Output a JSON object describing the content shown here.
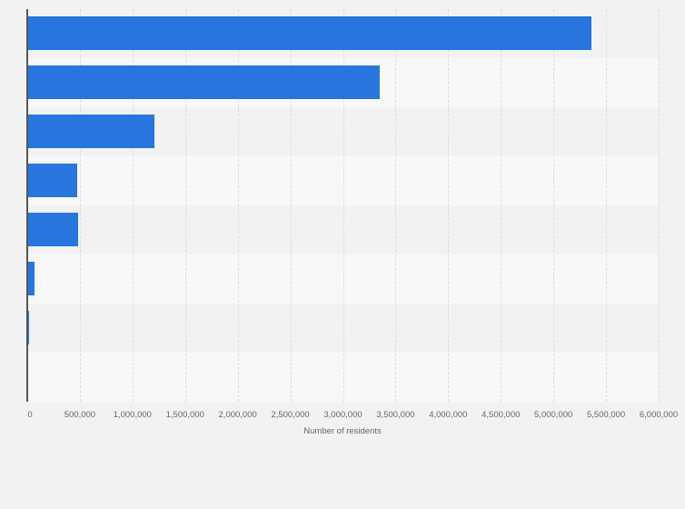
{
  "chart_data": {
    "type": "bar",
    "orientation": "horizontal",
    "title": "",
    "xlabel": "Number of residents",
    "ylabel": "",
    "categories": [
      "",
      "",
      "",
      "",
      "",
      "",
      "",
      ""
    ],
    "values": [
      5360000,
      3350000,
      1210000,
      478000,
      484000,
      72000,
      11000,
      0
    ],
    "xlim": [
      0,
      6000000
    ],
    "xticks": [
      0,
      500000,
      1000000,
      1500000,
      2000000,
      2500000,
      3000000,
      3500000,
      4000000,
      4500000,
      5000000,
      5500000,
      6000000
    ],
    "xtick_labels": [
      "0",
      "500,000",
      "1,000,000",
      "1,500,000",
      "2,000,000",
      "2,500,000",
      "3,000,000",
      "3,500,000",
      "4,000,000",
      "4,500,000",
      "5,000,000",
      "5,500,000",
      "6,000,000"
    ],
    "grid": true,
    "legend": null,
    "bar_color": "#2876dd"
  },
  "colors": {
    "bar": "#2876dd",
    "band_a": "#f2f2f2",
    "band_b": "#f8f8f8",
    "background": "#f2f2f2"
  }
}
